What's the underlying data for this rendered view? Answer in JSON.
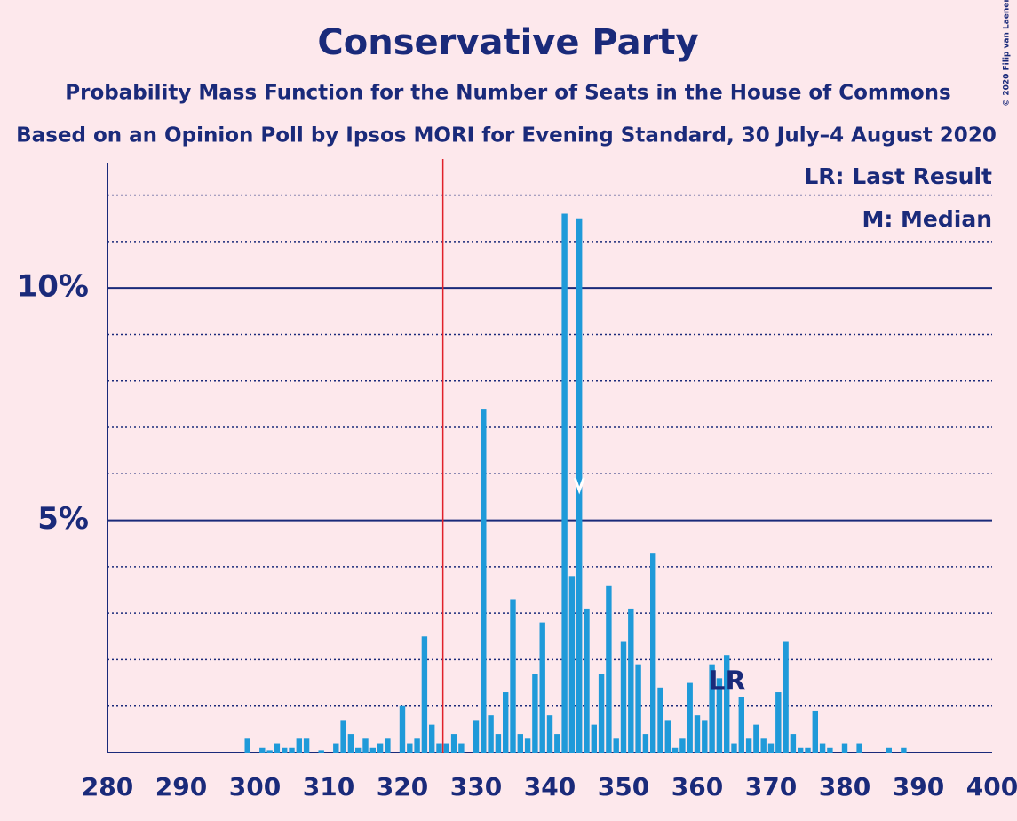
{
  "chart_data": {
    "type": "bar",
    "title": "Conservative Party",
    "subtitle": "Probability Mass Function for the Number of Seats in the House of Commons",
    "subtitle2": "Based on an Opinion Poll by Ipsos MORI for Evening Standard, 30 July–4 August 2020",
    "copyright": "© 2020 Filip van Laenen",
    "legend_lr": "LR: Last Result",
    "legend_m": "M: Median",
    "last_result_label": "LR",
    "x": [
      280,
      281,
      282,
      283,
      284,
      285,
      286,
      287,
      288,
      289,
      290,
      291,
      292,
      293,
      294,
      295,
      296,
      297,
      298,
      299,
      300,
      301,
      302,
      303,
      304,
      305,
      306,
      307,
      308,
      309,
      310,
      311,
      312,
      313,
      314,
      315,
      316,
      317,
      318,
      319,
      320,
      321,
      322,
      323,
      324,
      325,
      326,
      327,
      328,
      329,
      330,
      331,
      332,
      333,
      334,
      335,
      336,
      337,
      338,
      339,
      340,
      341,
      342,
      343,
      344,
      345,
      346,
      347,
      348,
      349,
      350,
      351,
      352,
      353,
      354,
      355,
      356,
      357,
      358,
      359,
      360,
      361,
      362,
      363,
      364,
      365,
      366,
      367,
      368,
      369,
      370,
      371,
      372,
      373,
      374,
      375,
      376,
      377,
      378,
      379,
      380,
      381,
      382,
      383,
      384,
      385,
      386,
      387,
      388,
      389,
      390,
      391,
      392,
      393,
      394,
      395,
      396,
      397,
      398,
      399,
      400
    ],
    "values": [
      0,
      0,
      0,
      0,
      0,
      0,
      0,
      0,
      0,
      0,
      0,
      0,
      0,
      0,
      0,
      0,
      0,
      0,
      0,
      0.3,
      0,
      0.1,
      0.05,
      0.2,
      0.1,
      0.1,
      0.3,
      0.3,
      0,
      0.05,
      0,
      0.2,
      0.7,
      0.4,
      0.1,
      0.3,
      0.1,
      0.2,
      0.3,
      0,
      1.0,
      0.2,
      0.3,
      2.5,
      0.6,
      0.2,
      0.2,
      0.4,
      0.2,
      0,
      0.7,
      7.4,
      0.8,
      0.4,
      1.3,
      3.3,
      0.4,
      0.3,
      1.7,
      2.8,
      0.8,
      0.4,
      11.6,
      3.8,
      11.5,
      3.1,
      0.6,
      1.7,
      3.6,
      0.3,
      2.4,
      3.1,
      1.9,
      0.4,
      4.3,
      1.4,
      0.7,
      0.1,
      0.3,
      1.5,
      0.8,
      0.7,
      1.9,
      1.6,
      2.1,
      0.2,
      1.2,
      0.3,
      0.6,
      0.3,
      0.2,
      1.3,
      2.4,
      0.4,
      0.1,
      0.1,
      0.9,
      0.2,
      0.1,
      0,
      0.2,
      0,
      0.2,
      0,
      0,
      0,
      0.1,
      0,
      0.1,
      0,
      0,
      0,
      0,
      0,
      0,
      0,
      0,
      0,
      0,
      0,
      0
    ],
    "color": "#1f9ad9",
    "xlim": [
      280,
      400
    ],
    "xticks": [
      280,
      290,
      300,
      310,
      320,
      330,
      340,
      350,
      360,
      370,
      380,
      390,
      400
    ],
    "ylim": [
      0,
      12.7
    ],
    "yticks": [
      {
        "value": 5,
        "label": "5%"
      },
      {
        "value": 10,
        "label": "10%"
      }
    ],
    "ygrid": [
      1,
      2,
      3,
      4,
      6,
      7,
      8,
      9,
      11,
      12
    ],
    "majority": 326,
    "median": 344,
    "last_result": 365
  }
}
